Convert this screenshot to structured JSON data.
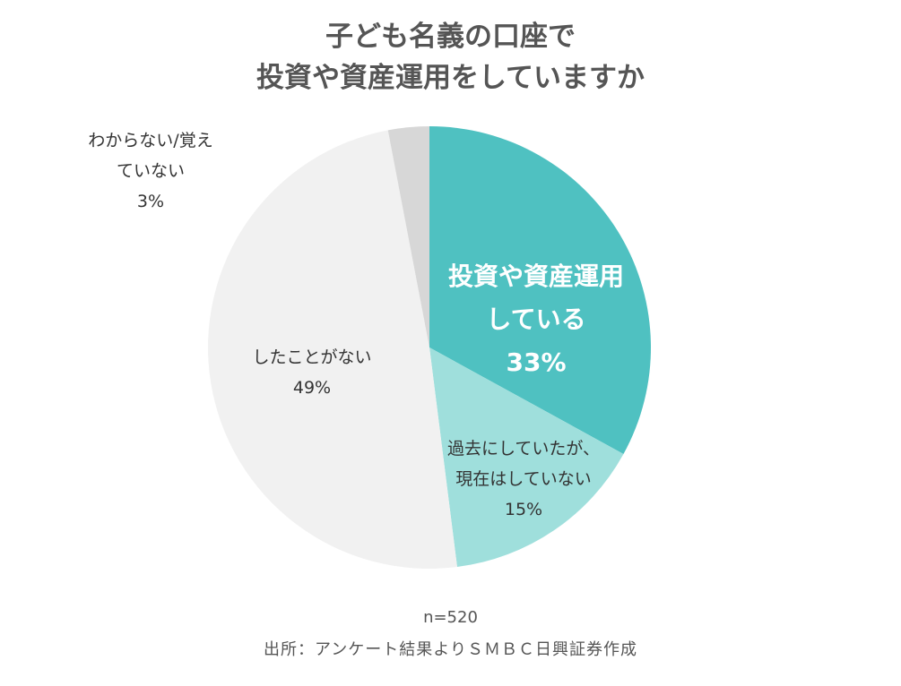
{
  "title": {
    "line1": "子ども名義の口座で",
    "line2": "投資や資産運用をしていますか"
  },
  "chart_data": {
    "type": "pie",
    "start_angle_deg": 0,
    "direction": "clockwise",
    "slices": [
      {
        "label_lines": [
          "投資や資産運用",
          "している"
        ],
        "value": 33,
        "value_label": "33%",
        "color": "#4fc1c1",
        "label_color": "#ffffff",
        "label_bold": true
      },
      {
        "label_lines": [
          "過去にしていたが、",
          "現在はしていない"
        ],
        "value": 15,
        "value_label": "15%",
        "color": "#9fdfdc",
        "label_color": "#333333",
        "label_bold": false
      },
      {
        "label_lines": [
          "したことがない"
        ],
        "value": 49,
        "value_label": "49%",
        "color": "#f1f1f1",
        "label_color": "#333333",
        "label_bold": false
      },
      {
        "label_lines": [
          "わからない/覚え",
          "ていない"
        ],
        "value": 3,
        "value_label": "3%",
        "color": "#d7d7d7",
        "label_color": "#333333",
        "label_bold": false
      }
    ]
  },
  "footer": {
    "sample_size": "n=520",
    "source": "出所：アンケート結果よりＳＭＢＣ日興証券作成"
  }
}
